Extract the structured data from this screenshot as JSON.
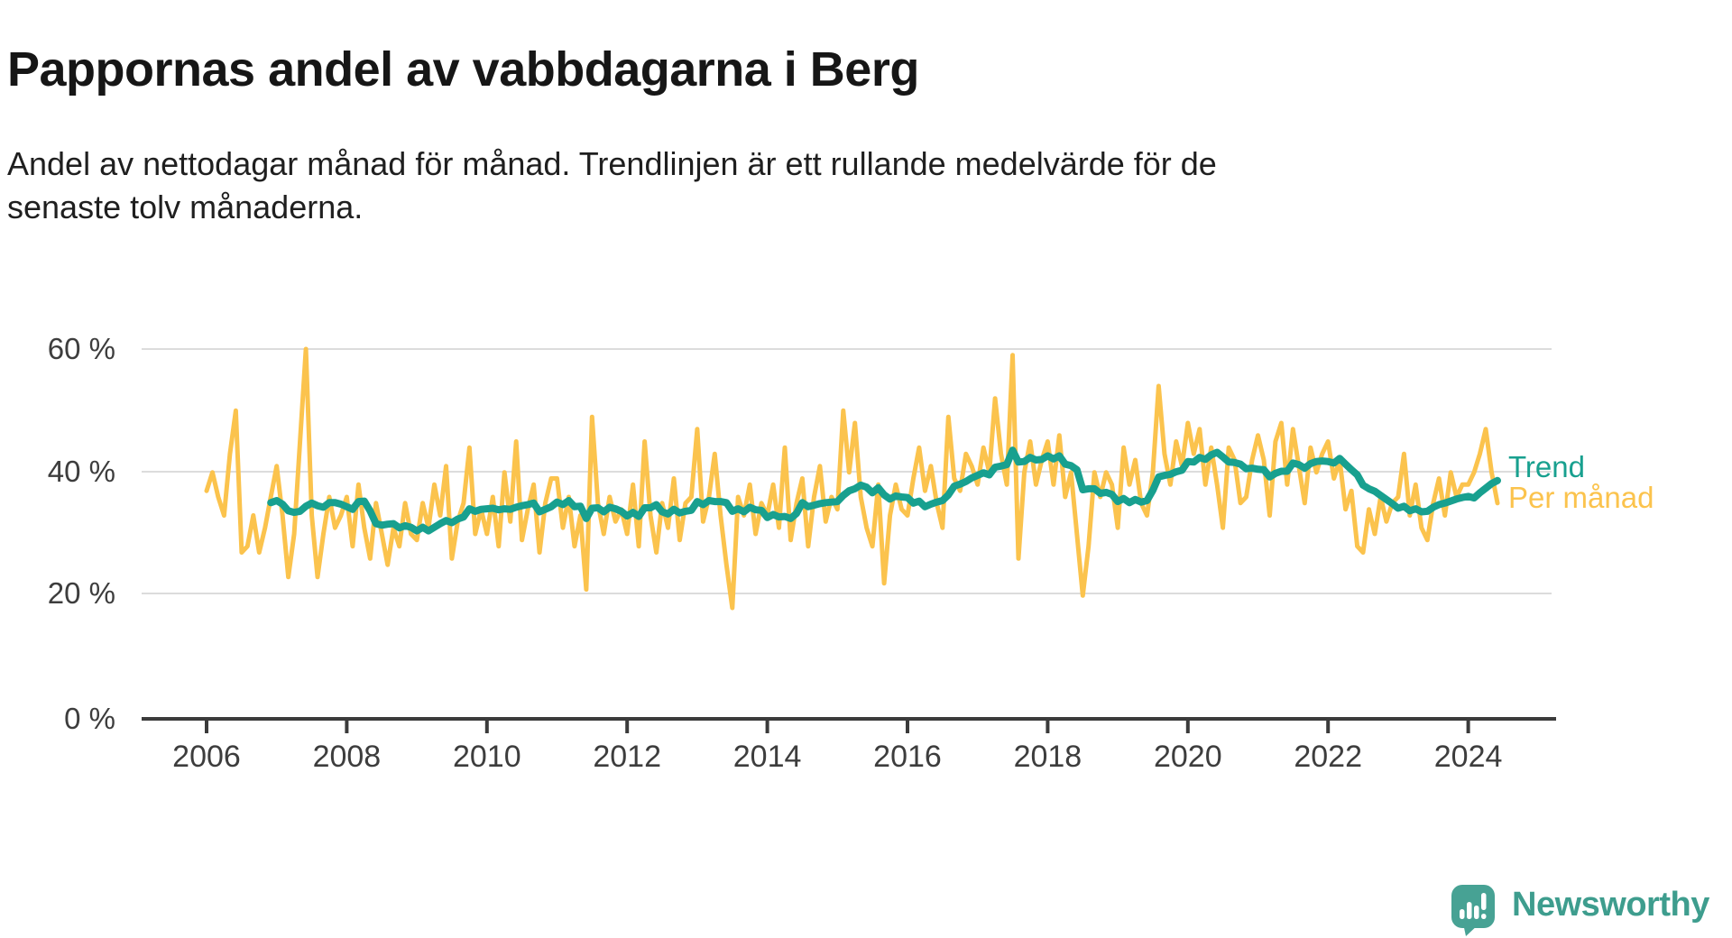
{
  "header": {
    "title": "Pappornas andel av vabbdagarna i Berg",
    "subtitle": "Andel av nettodagar månad för månad. Trendlinjen är ett rullande medelvärde för de senaste tolv månaderna."
  },
  "chart_data": {
    "type": "line",
    "title": "Pappornas andel av vabbdagarna i Berg",
    "subtitle": "Andel av nettodagar månad för månad. Trendlinjen är ett rullande medelvärde för de senaste tolv månaderna.",
    "y_unit": "%",
    "ylim": [
      0,
      65
    ],
    "grid": "horizontal",
    "legend_position": "right-end",
    "start_month": "2006-01",
    "end_month": "2024-06",
    "y_ticks": [
      60,
      40,
      20,
      0
    ],
    "y_tick_labels": [
      "60 %",
      "40 %",
      "20 %",
      "0 %"
    ],
    "x_tick_labels": [
      "2006",
      "2008",
      "2010",
      "2012",
      "2014",
      "2016",
      "2018",
      "2020",
      "2022",
      "2024"
    ],
    "series": [
      {
        "name": "Per månad",
        "color": "#FBC34D",
        "kind": "monthly values",
        "values": [
          37,
          40,
          36,
          33,
          43,
          50,
          27,
          28,
          33,
          27,
          31,
          36,
          41,
          33,
          23,
          30,
          45,
          60,
          33,
          23,
          30,
          36,
          31,
          33,
          36,
          28,
          38,
          31,
          26,
          35,
          30,
          25,
          31,
          28,
          35,
          30,
          29,
          35,
          31,
          38,
          33,
          41,
          26,
          32,
          35,
          44,
          30,
          34,
          30,
          36,
          28,
          40,
          32,
          45,
          29,
          34,
          38,
          27,
          35,
          39,
          39,
          31,
          36,
          28,
          33,
          21,
          49,
          35,
          30,
          36,
          32,
          34,
          30,
          38,
          28,
          45,
          33,
          27,
          35,
          31,
          39,
          29,
          35,
          36,
          47,
          32,
          36,
          43,
          33,
          25,
          18,
          36,
          33,
          38,
          30,
          35,
          33,
          38,
          31,
          44,
          29,
          35,
          39,
          28,
          36,
          41,
          32,
          36,
          34,
          50,
          40,
          48,
          36,
          31,
          28,
          38,
          22,
          33,
          38,
          34,
          33,
          39,
          44,
          37,
          41,
          35,
          31,
          49,
          39,
          37,
          43,
          41,
          38,
          44,
          40,
          52,
          43,
          38,
          59,
          26,
          40,
          45,
          38,
          42,
          45,
          38,
          46,
          36,
          40,
          30,
          20,
          28,
          40,
          36,
          40,
          38,
          31,
          44,
          38,
          42,
          35,
          33,
          40,
          54,
          43,
          38,
          45,
          41,
          48,
          43,
          47,
          38,
          44,
          38,
          31,
          44,
          42,
          35,
          36,
          42,
          46,
          42,
          33,
          45,
          48,
          38,
          47,
          41,
          35,
          44,
          40,
          43,
          45,
          39,
          42,
          34,
          37,
          28,
          27,
          34,
          30,
          36,
          32,
          35,
          36,
          43,
          33,
          38,
          31,
          29,
          35,
          39,
          33,
          40,
          36,
          38,
          38,
          40,
          43,
          47,
          40,
          35
        ]
      },
      {
        "name": "Trend",
        "color": "#18A08F",
        "kind": "rolling mean of last 12 months",
        "window": 12,
        "derived_from": "Per månad"
      }
    ]
  },
  "legend": {
    "trend": "Trend",
    "per_month": "Per månad"
  },
  "footer": {
    "brand": "Newsworthy",
    "logo_color": "#47A294",
    "logo_text_color": "#3E9D8E"
  }
}
